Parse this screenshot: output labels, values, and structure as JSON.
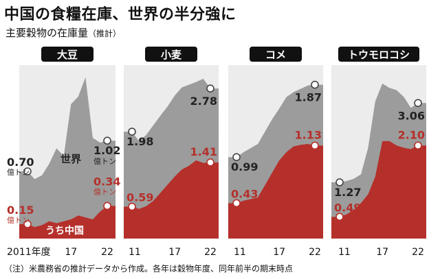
{
  "title": "中国の食糧在庫、世界の半分強に",
  "subtitle": "主要穀物の在庫量",
  "subtitle_note": "（推計）",
  "footnote": "（注）米農務省の推計データから作成。各年は穀物年度、同年前半の期末時点",
  "chart_data": [
    {
      "type": "area",
      "title": "大豆",
      "x": [
        2011,
        2012,
        2013,
        2014,
        2015,
        2016,
        2017,
        2018,
        2019,
        2020,
        2021,
        2022
      ],
      "series": [
        {
          "name": "世界",
          "values": [
            0.7,
            0.62,
            0.66,
            0.78,
            0.94,
            0.86,
            1.4,
            1.48,
            1.68,
            1.05,
            1.0,
            1.02
          ]
        },
        {
          "name": "うち中国",
          "values": [
            0.15,
            0.12,
            0.14,
            0.18,
            0.16,
            0.18,
            0.2,
            0.24,
            0.22,
            0.2,
            0.28,
            0.34
          ]
        }
      ],
      "ylim": [
        0,
        1.8
      ],
      "labels": {
        "world_start": "0.70",
        "world_end": "1.02",
        "china_start": "0.15",
        "china_end": "0.34",
        "unit": "億トン",
        "world_name": "世界",
        "china_name": "うち中国"
      },
      "ticks": {
        "start": "2011年度",
        "mid": "17",
        "end": "22"
      }
    },
    {
      "type": "area",
      "title": "小麦",
      "x": [
        2011,
        2012,
        2013,
        2014,
        2015,
        2016,
        2017,
        2018,
        2019,
        2020,
        2021,
        2022
      ],
      "series": [
        {
          "name": "世界",
          "values": [
            1.98,
            1.8,
            1.92,
            2.1,
            2.28,
            2.45,
            2.65,
            2.8,
            2.85,
            2.9,
            2.96,
            2.78
          ]
        },
        {
          "name": "うち中国",
          "values": [
            0.59,
            0.55,
            0.6,
            0.7,
            0.85,
            1.0,
            1.15,
            1.28,
            1.35,
            1.45,
            1.4,
            1.41
          ]
        }
      ],
      "ylim": [
        0,
        3.2
      ],
      "labels": {
        "world_start": "1.98",
        "world_end": "2.78",
        "china_start": "0.59",
        "china_end": "1.41"
      },
      "ticks": {
        "start": "11",
        "mid": "17",
        "end": "22"
      }
    },
    {
      "type": "area",
      "title": "コメ",
      "x": [
        2011,
        2012,
        2013,
        2014,
        2015,
        2016,
        2017,
        2018,
        2019,
        2020,
        2021,
        2022
      ],
      "series": [
        {
          "name": "世界",
          "values": [
            0.99,
            1.05,
            1.1,
            1.15,
            1.3,
            1.45,
            1.58,
            1.72,
            1.78,
            1.82,
            1.86,
            1.87
          ]
        },
        {
          "name": "うち中国",
          "values": [
            0.43,
            0.46,
            0.48,
            0.5,
            0.65,
            0.8,
            0.95,
            1.05,
            1.12,
            1.14,
            1.15,
            1.13
          ]
        }
      ],
      "ylim": [
        0,
        2.1
      ],
      "labels": {
        "world_start": "0.99",
        "world_end": "1.87",
        "china_start": "0.43",
        "china_end": "1.13"
      },
      "ticks": {
        "start": "11",
        "mid": "17",
        "end": "22"
      }
    },
    {
      "type": "area",
      "title": "トウモロコシ",
      "x": [
        2011,
        2012,
        2013,
        2014,
        2015,
        2016,
        2017,
        2018,
        2019,
        2020,
        2021,
        2022
      ],
      "series": [
        {
          "name": "世界",
          "values": [
            1.27,
            1.3,
            1.35,
            1.45,
            2.05,
            3.1,
            3.5,
            3.4,
            3.35,
            3.2,
            2.95,
            3.06
          ]
        },
        {
          "name": "うち中国",
          "values": [
            0.49,
            0.55,
            0.65,
            0.8,
            1.0,
            1.4,
            2.2,
            2.2,
            2.1,
            2.05,
            2.02,
            2.1
          ]
        }
      ],
      "ylim": [
        0,
        3.9
      ],
      "labels": {
        "world_start": "1.27",
        "world_end": "3.06",
        "china_start": "0.49",
        "china_end": "2.10"
      },
      "ticks": {
        "start": "11",
        "mid": "17",
        "end": "22"
      }
    }
  ]
}
